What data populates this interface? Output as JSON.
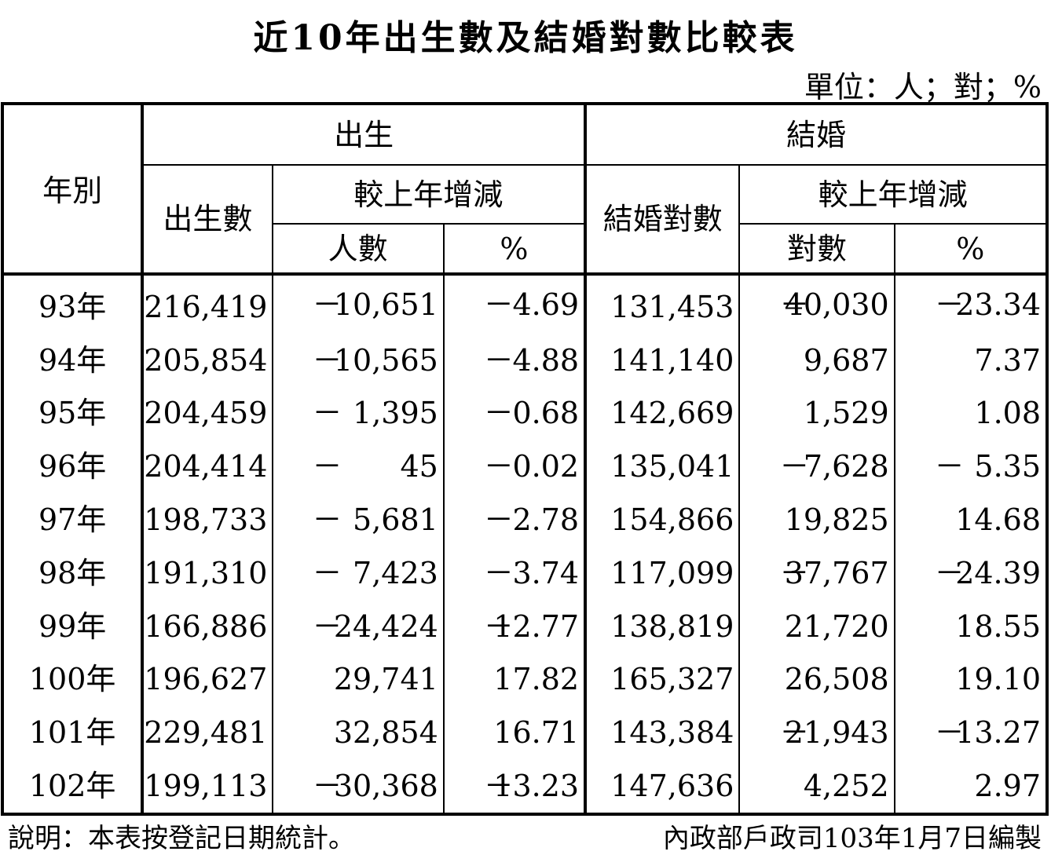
{
  "title": "近10年出生數及結婚對數比較表",
  "unit": "單位：人；對；%",
  "headers": {
    "year": "年別",
    "birth_group": "出生",
    "marriage_group": "結婚",
    "birth_count": "出生數",
    "marriage_count": "結婚對數",
    "change_birth": "較上年增減",
    "change_marriage": "較上年增減",
    "birth_people": "人數",
    "birth_pct": "%",
    "marriage_pairs": "對數",
    "marriage_pct": "%"
  },
  "rows": [
    {
      "year": "93年",
      "births": "216,419",
      "b_sign": "－",
      "b_diff": "10,651",
      "b_psign": "－",
      "b_pct": "4.69",
      "marriages": "131,453",
      "m_sign": "－",
      "m_diff": "40,030",
      "m_psign": "－",
      "m_pct": "23.34"
    },
    {
      "year": "94年",
      "births": "205,854",
      "b_sign": "－",
      "b_diff": "10,565",
      "b_psign": "－",
      "b_pct": "4.88",
      "marriages": "141,140",
      "m_sign": "",
      "m_diff": "9,687",
      "m_psign": "",
      "m_pct": "7.37"
    },
    {
      "year": "95年",
      "births": "204,459",
      "b_sign": "－",
      "b_diff": "1,395",
      "b_psign": "－",
      "b_pct": "0.68",
      "marriages": "142,669",
      "m_sign": "",
      "m_diff": "1,529",
      "m_psign": "",
      "m_pct": "1.08"
    },
    {
      "year": "96年",
      "births": "204,414",
      "b_sign": "－",
      "b_diff": "45",
      "b_psign": "－",
      "b_pct": "0.02",
      "marriages": "135,041",
      "m_sign": "－",
      "m_diff": "7,628",
      "m_psign": "－",
      "m_pct": "5.35"
    },
    {
      "year": "97年",
      "births": "198,733",
      "b_sign": "－",
      "b_diff": "5,681",
      "b_psign": "－",
      "b_pct": "2.78",
      "marriages": "154,866",
      "m_sign": "",
      "m_diff": "19,825",
      "m_psign": "",
      "m_pct": "14.68"
    },
    {
      "year": "98年",
      "births": "191,310",
      "b_sign": "－",
      "b_diff": "7,423",
      "b_psign": "－",
      "b_pct": "3.74",
      "marriages": "117,099",
      "m_sign": "－",
      "m_diff": "37,767",
      "m_psign": "－",
      "m_pct": "24.39"
    },
    {
      "year": "99年",
      "births": "166,886",
      "b_sign": "－",
      "b_diff": "24,424",
      "b_psign": "－",
      "b_pct": "12.77",
      "marriages": "138,819",
      "m_sign": "",
      "m_diff": "21,720",
      "m_psign": "",
      "m_pct": "18.55"
    },
    {
      "year": "100年",
      "births": "196,627",
      "b_sign": "",
      "b_diff": "29,741",
      "b_psign": "",
      "b_pct": "17.82",
      "marriages": "165,327",
      "m_sign": "",
      "m_diff": "26,508",
      "m_psign": "",
      "m_pct": "19.10"
    },
    {
      "year": "101年",
      "births": "229,481",
      "b_sign": "",
      "b_diff": "32,854",
      "b_psign": "",
      "b_pct": "16.71",
      "marriages": "143,384",
      "m_sign": "－",
      "m_diff": "21,943",
      "m_psign": "－",
      "m_pct": "13.27"
    },
    {
      "year": "102年",
      "births": "199,113",
      "b_sign": "－",
      "b_diff": "30,368",
      "b_psign": "－",
      "b_pct": "13.23",
      "marriages": "147,636",
      "m_sign": "",
      "m_diff": "4,252",
      "m_psign": "",
      "m_pct": "2.97"
    }
  ],
  "footer": {
    "note": "說明：本表按登記日期統計。",
    "source": "內政部戶政司103年1月7日編製"
  }
}
